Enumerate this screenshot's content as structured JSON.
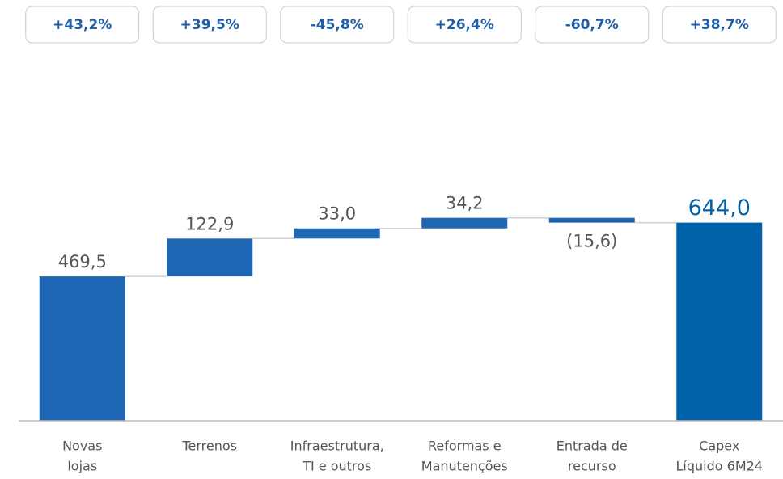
{
  "chart_data": {
    "type": "waterfall",
    "badges": [
      "+43,2%",
      "+39,5%",
      "-45,8%",
      "+26,4%",
      "-60,7%",
      "+38,7%"
    ],
    "categories": [
      [
        "Novas",
        "lojas"
      ],
      [
        "Terrenos"
      ],
      [
        "Infraestrutura,",
        "TI e outros"
      ],
      [
        "Reformas e",
        "Manutenções"
      ],
      [
        "Entrada de",
        "recurso"
      ],
      [
        "Capex",
        "Líquido 6M24"
      ]
    ],
    "values": [
      469.5,
      122.9,
      33.0,
      34.2,
      -15.6,
      644.0
    ],
    "value_labels": [
      "469,5",
      "122,9",
      "33,0",
      "34,2",
      "(15,6)",
      "644,0"
    ],
    "measure": [
      "relative",
      "relative",
      "relative",
      "relative",
      "relative",
      "total"
    ],
    "color": "#1f66b5",
    "total_color": "#0060a8",
    "ylim": [
      0,
      1000
    ]
  }
}
